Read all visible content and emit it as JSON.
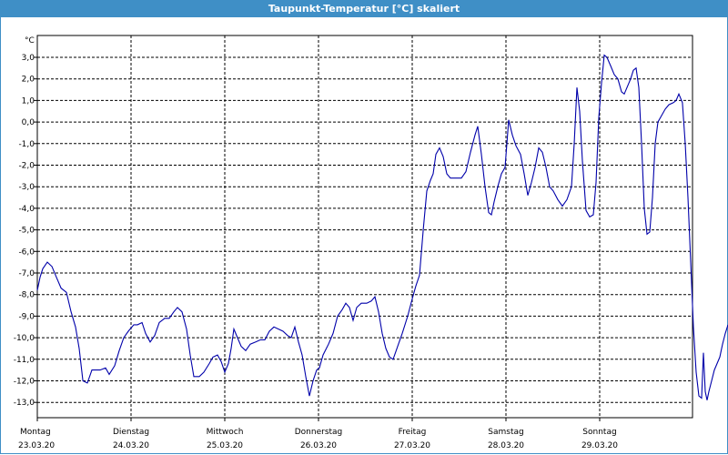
{
  "window": {
    "title": "Taupunkt-Temperatur [°C] skaliert"
  },
  "chart_data": {
    "type": "line",
    "title": "Taupunkt-Temperatur [°C] skaliert",
    "ylabel": "°C",
    "ylim": [
      -14.0,
      3.9
    ],
    "xlim_days": [
      0,
      7
    ],
    "yticks": [
      "3,0",
      "2,0",
      "1,0",
      "0,0",
      "-1,0",
      "-2,0",
      "-3,0",
      "-4,0",
      "-5,0",
      "-6,0",
      "-7,0",
      "-8,0",
      "-9,0",
      "-10,0",
      "-11,0",
      "-12,0",
      "-13,0"
    ],
    "ytick_values": [
      3,
      2,
      1,
      0,
      -1,
      -2,
      -3,
      -4,
      -5,
      -6,
      -7,
      -8,
      -9,
      -10,
      -11,
      -12,
      -13
    ],
    "xticks": [
      {
        "day": "Montag",
        "date": "23.03.20"
      },
      {
        "day": "Dienstag",
        "date": "24.03.20"
      },
      {
        "day": "Mittwoch",
        "date": "25.03.20"
      },
      {
        "day": "Donnerstag",
        "date": "26.03.20"
      },
      {
        "day": "Freitag",
        "date": "27.03.20"
      },
      {
        "day": "Samstag",
        "date": "28.03.20"
      },
      {
        "day": "Sonntag",
        "date": "29.03.20"
      }
    ],
    "grid": true,
    "line_color": "#0000aa",
    "series": [
      {
        "points": [
          [
            0.0,
            -7.8
          ],
          [
            0.029,
            -7.2
          ],
          [
            0.058,
            -6.8
          ],
          [
            0.107,
            -6.5
          ],
          [
            0.156,
            -6.7
          ],
          [
            0.204,
            -7.2
          ],
          [
            0.253,
            -7.7
          ],
          [
            0.311,
            -7.9
          ],
          [
            0.36,
            -8.8
          ],
          [
            0.408,
            -9.5
          ],
          [
            0.447,
            -10.5
          ],
          [
            0.486,
            -12.0
          ],
          [
            0.534,
            -12.1
          ],
          [
            0.583,
            -11.5
          ],
          [
            0.67,
            -11.5
          ],
          [
            0.728,
            -11.4
          ],
          [
            0.767,
            -11.7
          ],
          [
            0.825,
            -11.3
          ],
          [
            0.874,
            -10.6
          ],
          [
            0.922,
            -10.0
          ],
          [
            0.971,
            -9.7
          ],
          [
            1.029,
            -9.4
          ],
          [
            1.068,
            -9.4
          ],
          [
            1.117,
            -9.3
          ],
          [
            1.155,
            -9.8
          ],
          [
            1.204,
            -10.2
          ],
          [
            1.252,
            -9.9
          ],
          [
            1.301,
            -9.3
          ],
          [
            1.359,
            -9.1
          ],
          [
            1.408,
            -9.1
          ],
          [
            1.456,
            -8.8
          ],
          [
            1.495,
            -8.6
          ],
          [
            1.544,
            -8.8
          ],
          [
            1.592,
            -9.6
          ],
          [
            1.631,
            -10.8
          ],
          [
            1.67,
            -11.8
          ],
          [
            1.728,
            -11.8
          ],
          [
            1.777,
            -11.6
          ],
          [
            1.835,
            -11.2
          ],
          [
            1.874,
            -10.9
          ],
          [
            1.922,
            -10.8
          ],
          [
            1.961,
            -11.1
          ],
          [
            2.0,
            -11.6
          ],
          [
            2.039,
            -11.2
          ],
          [
            2.068,
            -10.5
          ],
          [
            2.097,
            -9.6
          ],
          [
            2.136,
            -10.0
          ],
          [
            2.175,
            -10.4
          ],
          [
            2.223,
            -10.6
          ],
          [
            2.272,
            -10.3
          ],
          [
            2.33,
            -10.2
          ],
          [
            2.379,
            -10.1
          ],
          [
            2.427,
            -10.1
          ],
          [
            2.476,
            -9.7
          ],
          [
            2.524,
            -9.5
          ],
          [
            2.573,
            -9.6
          ],
          [
            2.621,
            -9.7
          ],
          [
            2.67,
            -9.9
          ],
          [
            2.709,
            -10.0
          ],
          [
            2.748,
            -9.5
          ],
          [
            2.786,
            -10.2
          ],
          [
            2.825,
            -10.8
          ],
          [
            2.864,
            -11.8
          ],
          [
            2.903,
            -12.7
          ],
          [
            2.942,
            -12.0
          ],
          [
            2.981,
            -11.5
          ],
          [
            3.01,
            -11.4
          ],
          [
            3.049,
            -10.8
          ],
          [
            3.107,
            -10.3
          ],
          [
            3.155,
            -9.8
          ],
          [
            3.204,
            -9.0
          ],
          [
            3.252,
            -8.7
          ],
          [
            3.291,
            -8.4
          ],
          [
            3.33,
            -8.6
          ],
          [
            3.369,
            -9.2
          ],
          [
            3.408,
            -8.6
          ],
          [
            3.456,
            -8.4
          ],
          [
            3.515,
            -8.4
          ],
          [
            3.563,
            -8.3
          ],
          [
            3.602,
            -8.1
          ],
          [
            3.641,
            -8.8
          ],
          [
            3.68,
            -9.8
          ],
          [
            3.718,
            -10.5
          ],
          [
            3.757,
            -10.9
          ],
          [
            3.796,
            -11.0
          ],
          [
            3.845,
            -10.4
          ],
          [
            3.893,
            -9.8
          ],
          [
            3.951,
            -9.0
          ],
          [
            4.0,
            -8.2
          ],
          [
            4.039,
            -7.6
          ],
          [
            4.078,
            -7.1
          ],
          [
            4.117,
            -5.0
          ],
          [
            4.155,
            -3.2
          ],
          [
            4.194,
            -2.7
          ],
          [
            4.223,
            -2.4
          ],
          [
            4.252,
            -1.5
          ],
          [
            4.291,
            -1.2
          ],
          [
            4.33,
            -1.6
          ],
          [
            4.369,
            -2.4
          ],
          [
            4.408,
            -2.6
          ],
          [
            4.466,
            -2.6
          ],
          [
            4.524,
            -2.6
          ],
          [
            4.573,
            -2.3
          ],
          [
            4.621,
            -1.4
          ],
          [
            4.67,
            -0.6
          ],
          [
            4.699,
            -0.2
          ],
          [
            4.738,
            -1.5
          ],
          [
            4.777,
            -3.0
          ],
          [
            4.816,
            -4.2
          ],
          [
            4.845,
            -4.3
          ],
          [
            4.874,
            -3.7
          ],
          [
            4.913,
            -3.0
          ],
          [
            4.951,
            -2.4
          ],
          [
            4.99,
            -2.1
          ],
          [
            5.029,
            0.1
          ],
          [
            5.068,
            -0.6
          ],
          [
            5.107,
            -1.1
          ],
          [
            5.155,
            -1.5
          ],
          [
            5.194,
            -2.4
          ],
          [
            5.233,
            -3.4
          ],
          [
            5.272,
            -2.8
          ],
          [
            5.311,
            -2.1
          ],
          [
            5.35,
            -1.2
          ],
          [
            5.388,
            -1.4
          ],
          [
            5.427,
            -2.1
          ],
          [
            5.466,
            -3.0
          ],
          [
            5.505,
            -3.2
          ],
          [
            5.553,
            -3.6
          ],
          [
            5.602,
            -3.9
          ],
          [
            5.65,
            -3.6
          ],
          [
            5.699,
            -3.0
          ],
          [
            5.728,
            -1.0
          ],
          [
            5.757,
            1.6
          ],
          [
            5.786,
            0.5
          ],
          [
            5.816,
            -1.8
          ],
          [
            5.854,
            -4.1
          ],
          [
            5.893,
            -4.4
          ],
          [
            5.932,
            -4.3
          ],
          [
            5.961,
            -2.8
          ],
          [
            5.99,
            0.2
          ],
          [
            6.019,
            1.8
          ],
          [
            6.049,
            3.1
          ],
          [
            6.078,
            3.0
          ],
          [
            6.117,
            2.6
          ],
          [
            6.155,
            2.2
          ],
          [
            6.194,
            2.0
          ],
          [
            6.233,
            1.4
          ],
          [
            6.262,
            1.3
          ],
          [
            6.291,
            1.6
          ],
          [
            6.33,
            2.0
          ],
          [
            6.359,
            2.4
          ],
          [
            6.388,
            2.5
          ],
          [
            6.417,
            1.6
          ],
          [
            6.447,
            -1.0
          ],
          [
            6.476,
            -4.0
          ],
          [
            6.505,
            -5.2
          ],
          [
            6.534,
            -5.1
          ],
          [
            6.563,
            -3.5
          ],
          [
            6.592,
            -1.0
          ],
          [
            6.621,
            0.0
          ],
          [
            6.66,
            0.3
          ],
          [
            6.699,
            0.6
          ],
          [
            6.738,
            0.8
          ],
          [
            6.786,
            0.9
          ],
          [
            6.816,
            1.0
          ],
          [
            6.845,
            1.3
          ],
          [
            6.883,
            0.9
          ],
          [
            6.913,
            -1.0
          ],
          [
            6.942,
            -3.5
          ],
          [
            6.971,
            -6.5
          ],
          [
            7.0,
            -9.5
          ],
          [
            7.029,
            -11.6
          ],
          [
            7.058,
            -12.7
          ],
          [
            7.087,
            -12.8
          ],
          [
            7.107,
            -10.7
          ],
          [
            7.126,
            -12.5
          ],
          [
            7.146,
            -12.9
          ],
          [
            7.165,
            -12.5
          ],
          [
            7.194,
            -12.0
          ],
          [
            7.223,
            -11.5
          ],
          [
            7.252,
            -11.2
          ],
          [
            7.282,
            -10.9
          ],
          [
            7.311,
            -10.3
          ],
          [
            7.34,
            -9.8
          ],
          [
            7.369,
            -9.4
          ]
        ]
      }
    ]
  }
}
